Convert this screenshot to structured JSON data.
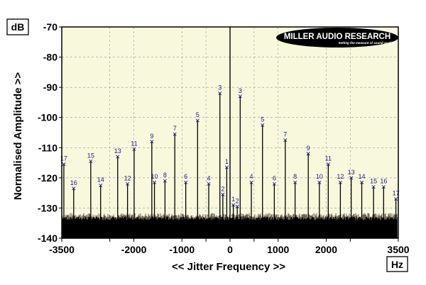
{
  "chart_data": {
    "type": "line",
    "title": "",
    "xlabel": "<< Jitter Frequency >>",
    "ylabel": "Normalised Amplitude >>",
    "x_unit": "Hz",
    "y_unit": "dB",
    "xlim": [
      -3500,
      3500
    ],
    "ylim": [
      -140,
      -70
    ],
    "x_ticks": [
      {
        "value": -3500,
        "label": "-3500"
      },
      {
        "value": -2000,
        "label": "-2000"
      },
      {
        "value": -1000,
        "label": "-1000"
      },
      {
        "value": 0,
        "label": "0"
      },
      {
        "value": 1000,
        "label": "1000"
      },
      {
        "value": 2000,
        "label": "2000"
      },
      {
        "value": 3500,
        "label": "3500"
      }
    ],
    "x_minor_ticks": [
      -2500,
      -500,
      500,
      2500
    ],
    "y_ticks": [
      {
        "value": -70,
        "label": "-70"
      },
      {
        "value": -80,
        "label": "-80"
      },
      {
        "value": -90,
        "label": "-90"
      },
      {
        "value": -100,
        "label": "-100"
      },
      {
        "value": -110,
        "label": "-110"
      },
      {
        "value": -120,
        "label": "-120"
      },
      {
        "value": -130,
        "label": "-130"
      },
      {
        "value": -140,
        "label": "-140"
      }
    ],
    "grid": "dashed",
    "noise_floor_db": -134,
    "center_peak": {
      "x": 0,
      "y": -70
    },
    "peaks": [
      {
        "label": "17",
        "x": -3457,
        "y": -115.5
      },
      {
        "label": "16",
        "x": -3252,
        "y": -123.5
      },
      {
        "label": "15",
        "x": -2897,
        "y": -114.5
      },
      {
        "label": "14",
        "x": -2692,
        "y": -122.5
      },
      {
        "label": "13",
        "x": -2337,
        "y": -113.0
      },
      {
        "label": "12",
        "x": -2132,
        "y": -122.0
      },
      {
        "label": "11",
        "x": -1995,
        "y": -110.5
      },
      {
        "label": "10",
        "x": -1572,
        "y": -121.5
      },
      {
        "label": "9",
        "x": -1627,
        "y": -108.0
      },
      {
        "label": "8",
        "x": -1353,
        "y": -121.0
      },
      {
        "label": "7",
        "x": -1149,
        "y": -105.5
      },
      {
        "label": "6",
        "x": -921,
        "y": -121.5
      },
      {
        "label": "5",
        "x": -675,
        "y": -101.0
      },
      {
        "label": "4",
        "x": -443,
        "y": -122.0
      },
      {
        "label": "3",
        "x": -211,
        "y": -92.0
      },
      {
        "label": "2",
        "x": -150,
        "y": -125.5
      },
      {
        "label": "1",
        "x": -68,
        "y": -116.5
      },
      {
        "label": "1",
        "x": 68,
        "y": -129.0
      },
      {
        "label": "2",
        "x": 150,
        "y": -129.5
      },
      {
        "label": "3",
        "x": 211,
        "y": -93.0
      },
      {
        "label": "4",
        "x": 443,
        "y": -121.5
      },
      {
        "label": "5",
        "x": 675,
        "y": -102.5
      },
      {
        "label": "6",
        "x": 921,
        "y": -122.0
      },
      {
        "label": "7",
        "x": 1149,
        "y": -107.5
      },
      {
        "label": "8",
        "x": 1353,
        "y": -121.5
      },
      {
        "label": "9",
        "x": 1627,
        "y": -112.0
      },
      {
        "label": "10",
        "x": 1858,
        "y": -121.5
      },
      {
        "label": "11",
        "x": 2043,
        "y": -115.5
      },
      {
        "label": "12",
        "x": 2295,
        "y": -121.5
      },
      {
        "label": "13",
        "x": 2520,
        "y": -120.0
      },
      {
        "label": "14",
        "x": 2740,
        "y": -121.5
      },
      {
        "label": "15",
        "x": 2985,
        "y": -123.0
      },
      {
        "label": "16",
        "x": 3195,
        "y": -123.0
      },
      {
        "label": "17",
        "x": 3450,
        "y": -127.0
      }
    ]
  },
  "logo": {
    "text": "MILLER AUDIO RESEARCH",
    "tagline": "Setting the measure of sound quality"
  },
  "colors": {
    "plot_background": "#f8f8dc",
    "trace": "#000000",
    "noise_accent": "#cc2200",
    "marker": "#1a1a8c",
    "grid": "#999999"
  }
}
